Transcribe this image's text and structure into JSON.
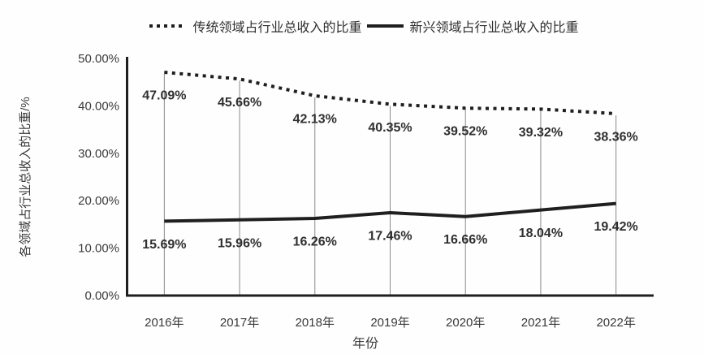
{
  "chart_data": {
    "type": "line",
    "title": "",
    "xlabel": "年份",
    "ylabel": "各领域占行业总收入的比重/%",
    "categories": [
      "2016年",
      "2017年",
      "2018年",
      "2019年",
      "2020年",
      "2021年",
      "2022年"
    ],
    "series": [
      {
        "name": "传统领域占行业总收入的比重",
        "line_style": "dotted",
        "values": [
          47.09,
          45.66,
          42.13,
          40.35,
          39.52,
          39.32,
          38.36
        ],
        "data_labels": [
          "47.09%",
          "45.66%",
          "42.13%",
          "40.35%",
          "39.52%",
          "39.32%",
          "38.36%"
        ]
      },
      {
        "name": "新兴领域占行业总收入的比重",
        "line_style": "solid",
        "values": [
          15.69,
          15.96,
          16.26,
          17.46,
          16.66,
          18.04,
          19.42
        ],
        "data_labels": [
          "15.69%",
          "15.96%",
          "16.26%",
          "17.46%",
          "16.66%",
          "18.04%",
          "19.42%"
        ]
      }
    ],
    "ylim": [
      0,
      50
    ],
    "ytick_step": 10,
    "ytick_labels": [
      "0.00%",
      "10.00%",
      "20.00%",
      "30.00%",
      "40.00%",
      "50.00%"
    ],
    "grid": false,
    "drop_lines": true,
    "legend_position": "top",
    "colors": {
      "line": "#1f1f1f",
      "data_label": "#303030",
      "tick_label": "#3a3a3a",
      "drop_line": "#8a8a8a",
      "axis": "#1f1f1f"
    }
  }
}
